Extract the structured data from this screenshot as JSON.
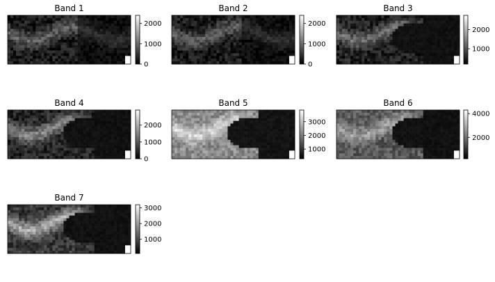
{
  "chart_data": [
    {
      "type": "heatmap",
      "title": "Band 1",
      "colormap": "gray",
      "colorbar": {
        "ticks": [
          0,
          1000,
          2000
        ],
        "tick_labels": [
          "0",
          "1000",
          "2000"
        ],
        "range": [
          0,
          2400
        ]
      },
      "axes": "hidden"
    },
    {
      "type": "heatmap",
      "title": "Band 2",
      "colormap": "gray",
      "colorbar": {
        "ticks": [
          0,
          1000,
          2000
        ],
        "tick_labels": [
          "0",
          "1000",
          "2000"
        ],
        "range": [
          0,
          2400
        ]
      },
      "axes": "hidden"
    },
    {
      "type": "heatmap",
      "title": "Band 3",
      "colormap": "gray",
      "colorbar": {
        "ticks": [
          1000,
          2000
        ],
        "tick_labels": [
          "1000",
          "2000"
        ],
        "range": [
          200,
          2750
        ]
      },
      "axes": "hidden"
    },
    {
      "type": "heatmap",
      "title": "Band 4",
      "colormap": "gray",
      "colorbar": {
        "ticks": [
          0,
          1000,
          2000
        ],
        "tick_labels": [
          "0",
          "1000",
          "2000"
        ],
        "range": [
          0,
          2900
        ]
      },
      "axes": "hidden"
    },
    {
      "type": "heatmap",
      "title": "Band 5",
      "colormap": "gray",
      "colorbar": {
        "ticks": [
          1000,
          2000,
          3000
        ],
        "tick_labels": [
          "1000",
          "2000",
          "3000"
        ],
        "range": [
          300,
          3850
        ]
      },
      "axes": "hidden"
    },
    {
      "type": "heatmap",
      "title": "Band 6",
      "colormap": "gray",
      "colorbar": {
        "ticks": [
          2000,
          4000
        ],
        "tick_labels": [
          "2000",
          "4000"
        ],
        "range": [
          200,
          4300
        ]
      },
      "axes": "hidden"
    },
    {
      "type": "heatmap",
      "title": "Band 7",
      "colormap": "gray",
      "colorbar": {
        "ticks": [
          1000,
          2000,
          3000
        ],
        "tick_labels": [
          "1000",
          "2000",
          "3000"
        ],
        "range": [
          100,
          3200
        ]
      },
      "axes": "hidden"
    }
  ]
}
